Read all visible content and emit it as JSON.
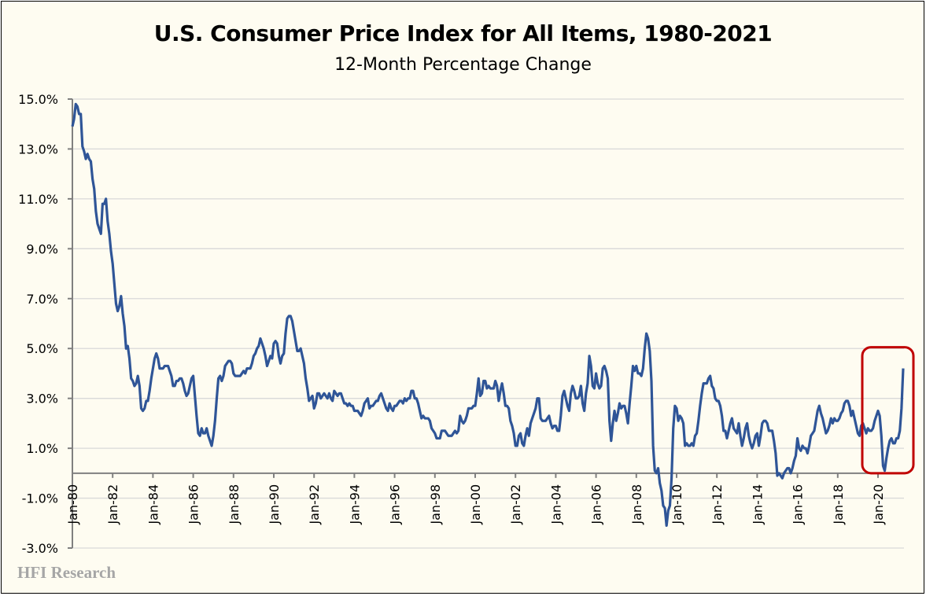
{
  "chart_data": {
    "type": "line",
    "title": "U.S. Consumer Price Index for All Items, 1980-2021",
    "subtitle": "12-Month Percentage Change",
    "xlabel": "",
    "ylabel": "",
    "x_start": "Jan-80",
    "x_frequency": "monthly",
    "x_end": "Apr-21",
    "x_tick_labels": [
      "Jan-80",
      "Jan-82",
      "Jan-84",
      "Jan-86",
      "Jan-88",
      "Jan-90",
      "Jan-92",
      "Jan-94",
      "Jan-96",
      "Jan-98",
      "Jan-00",
      "Jan-02",
      "Jan-04",
      "Jan-06",
      "Jan-08",
      "Jan-10",
      "Jan-12",
      "Jan-14",
      "Jan-16",
      "Jan-18",
      "Jan-20"
    ],
    "y_tick_labels": [
      "15.0%",
      "13.0%",
      "11.0%",
      "9.0%",
      "7.0%",
      "5.0%",
      "3.0%",
      "1.0%",
      "-1.0%",
      "-3.0%"
    ],
    "ylim": [
      -3,
      15
    ],
    "y_unit": "%",
    "grid": "horizontal",
    "line_color": "#2f5597",
    "highlight": {
      "from": "Jan-20",
      "to": "Apr-21",
      "color": "#c00000"
    },
    "values": [
      13.9,
      14.2,
      14.8,
      14.7,
      14.4,
      14.4,
      13.1,
      12.9,
      12.6,
      12.8,
      12.6,
      12.5,
      11.8,
      11.4,
      10.5,
      10.0,
      9.8,
      9.6,
      10.8,
      10.8,
      11.0,
      10.1,
      9.6,
      8.9,
      8.4,
      7.6,
      6.8,
      6.5,
      6.7,
      7.1,
      6.4,
      5.9,
      5.0,
      5.1,
      4.6,
      3.8,
      3.7,
      3.5,
      3.6,
      3.9,
      3.5,
      2.6,
      2.5,
      2.6,
      2.9,
      2.9,
      3.3,
      3.8,
      4.2,
      4.6,
      4.8,
      4.6,
      4.2,
      4.2,
      4.2,
      4.3,
      4.3,
      4.3,
      4.1,
      3.9,
      3.5,
      3.5,
      3.7,
      3.7,
      3.8,
      3.8,
      3.6,
      3.3,
      3.1,
      3.2,
      3.5,
      3.8,
      3.9,
      3.1,
      2.3,
      1.6,
      1.5,
      1.8,
      1.6,
      1.6,
      1.8,
      1.5,
      1.3,
      1.1,
      1.5,
      2.1,
      3.0,
      3.8,
      3.9,
      3.7,
      3.9,
      4.3,
      4.4,
      4.5,
      4.5,
      4.4,
      4.0,
      3.9,
      3.9,
      3.9,
      3.9,
      4.0,
      4.1,
      4.0,
      4.2,
      4.2,
      4.2,
      4.4,
      4.7,
      4.8,
      5.0,
      5.1,
      5.4,
      5.2,
      5.0,
      4.7,
      4.3,
      4.5,
      4.7,
      4.6,
      5.2,
      5.3,
      5.2,
      4.7,
      4.4,
      4.7,
      4.8,
      5.6,
      6.2,
      6.3,
      6.3,
      6.1,
      5.7,
      5.3,
      4.9,
      4.9,
      5.0,
      4.7,
      4.4,
      3.8,
      3.4,
      2.9,
      3.0,
      3.1,
      2.6,
      2.8,
      3.2,
      3.2,
      3.0,
      3.1,
      3.2,
      3.1,
      3.0,
      3.2,
      3.0,
      2.9,
      3.3,
      3.2,
      3.1,
      3.2,
      3.2,
      3.0,
      2.8,
      2.8,
      2.7,
      2.8,
      2.7,
      2.7,
      2.5,
      2.5,
      2.5,
      2.4,
      2.3,
      2.5,
      2.8,
      2.9,
      3.0,
      2.6,
      2.7,
      2.7,
      2.8,
      2.9,
      2.9,
      3.1,
      3.2,
      3.0,
      2.8,
      2.6,
      2.5,
      2.8,
      2.6,
      2.5,
      2.7,
      2.7,
      2.8,
      2.9,
      2.9,
      2.8,
      3.0,
      2.9,
      3.0,
      3.0,
      3.3,
      3.3,
      3.0,
      3.0,
      2.8,
      2.5,
      2.2,
      2.3,
      2.2,
      2.2,
      2.2,
      2.1,
      1.8,
      1.7,
      1.6,
      1.4,
      1.4,
      1.4,
      1.7,
      1.7,
      1.7,
      1.6,
      1.5,
      1.5,
      1.5,
      1.6,
      1.7,
      1.6,
      1.7,
      2.3,
      2.1,
      2.0,
      2.1,
      2.3,
      2.6,
      2.6,
      2.6,
      2.7,
      2.7,
      3.2,
      3.8,
      3.1,
      3.2,
      3.7,
      3.7,
      3.4,
      3.5,
      3.4,
      3.4,
      3.4,
      3.7,
      3.5,
      2.9,
      3.3,
      3.6,
      3.2,
      2.7,
      2.7,
      2.6,
      2.1,
      1.9,
      1.6,
      1.1,
      1.1,
      1.5,
      1.6,
      1.2,
      1.1,
      1.5,
      1.8,
      1.5,
      2.0,
      2.2,
      2.4,
      2.6,
      3.0,
      3.0,
      2.2,
      2.1,
      2.1,
      2.1,
      2.2,
      2.3,
      2.0,
      1.8,
      1.9,
      1.9,
      1.7,
      1.7,
      2.3,
      3.1,
      3.3,
      3.0,
      2.7,
      2.5,
      3.2,
      3.5,
      3.3,
      3.0,
      3.0,
      3.1,
      3.5,
      2.8,
      2.5,
      3.2,
      3.6,
      4.7,
      4.3,
      3.5,
      3.4,
      4.0,
      3.6,
      3.4,
      3.5,
      4.2,
      4.3,
      4.1,
      3.8,
      2.1,
      1.3,
      2.0,
      2.5,
      2.1,
      2.4,
      2.8,
      2.6,
      2.7,
      2.7,
      2.4,
      2.0,
      2.8,
      3.5,
      4.3,
      4.1,
      4.3,
      4.0,
      4.0,
      3.9,
      4.2,
      5.0,
      5.6,
      5.4,
      4.9,
      3.7,
      1.1,
      0.1,
      0.0,
      0.2,
      -0.4,
      -0.7,
      -1.3,
      -1.4,
      -2.1,
      -1.5,
      -1.3,
      -0.2,
      1.8,
      2.7,
      2.6,
      2.1,
      2.3,
      2.2,
      2.0,
      1.1,
      1.2,
      1.1,
      1.1,
      1.2,
      1.1,
      1.5,
      1.6,
      2.1,
      2.7,
      3.2,
      3.6,
      3.6,
      3.6,
      3.8,
      3.9,
      3.5,
      3.4,
      3.0,
      2.9,
      2.9,
      2.7,
      2.3,
      1.7,
      1.7,
      1.4,
      1.7,
      2.0,
      2.2,
      1.8,
      1.7,
      1.6,
      2.0,
      1.5,
      1.1,
      1.4,
      1.8,
      2.0,
      1.5,
      1.2,
      1.0,
      1.2,
      1.5,
      1.6,
      1.1,
      1.5,
      2.0,
      2.1,
      2.1,
      2.0,
      1.7,
      1.7,
      1.7,
      1.3,
      0.8,
      -0.1,
      0.0,
      -0.1,
      -0.2,
      0.0,
      0.1,
      0.2,
      0.2,
      0.0,
      0.2,
      0.5,
      0.7,
      1.4,
      1.0,
      0.9,
      1.1,
      1.0,
      1.0,
      0.8,
      1.1,
      1.5,
      1.6,
      1.7,
      2.1,
      2.5,
      2.7,
      2.4,
      2.2,
      1.9,
      1.6,
      1.7,
      1.9,
      2.2,
      2.0,
      2.2,
      2.1,
      2.1,
      2.2,
      2.4,
      2.5,
      2.8,
      2.9,
      2.9,
      2.7,
      2.3,
      2.5,
      2.2,
      1.9,
      1.6,
      1.5,
      1.9,
      2.0,
      1.8,
      1.6,
      1.8,
      1.7,
      1.7,
      1.8,
      2.1,
      2.3,
      2.5,
      2.3,
      1.5,
      0.3,
      0.1,
      0.6,
      1.0,
      1.3,
      1.4,
      1.2,
      1.2,
      1.4,
      1.4,
      1.7,
      2.6,
      4.2
    ]
  },
  "watermark": "HFI Research"
}
